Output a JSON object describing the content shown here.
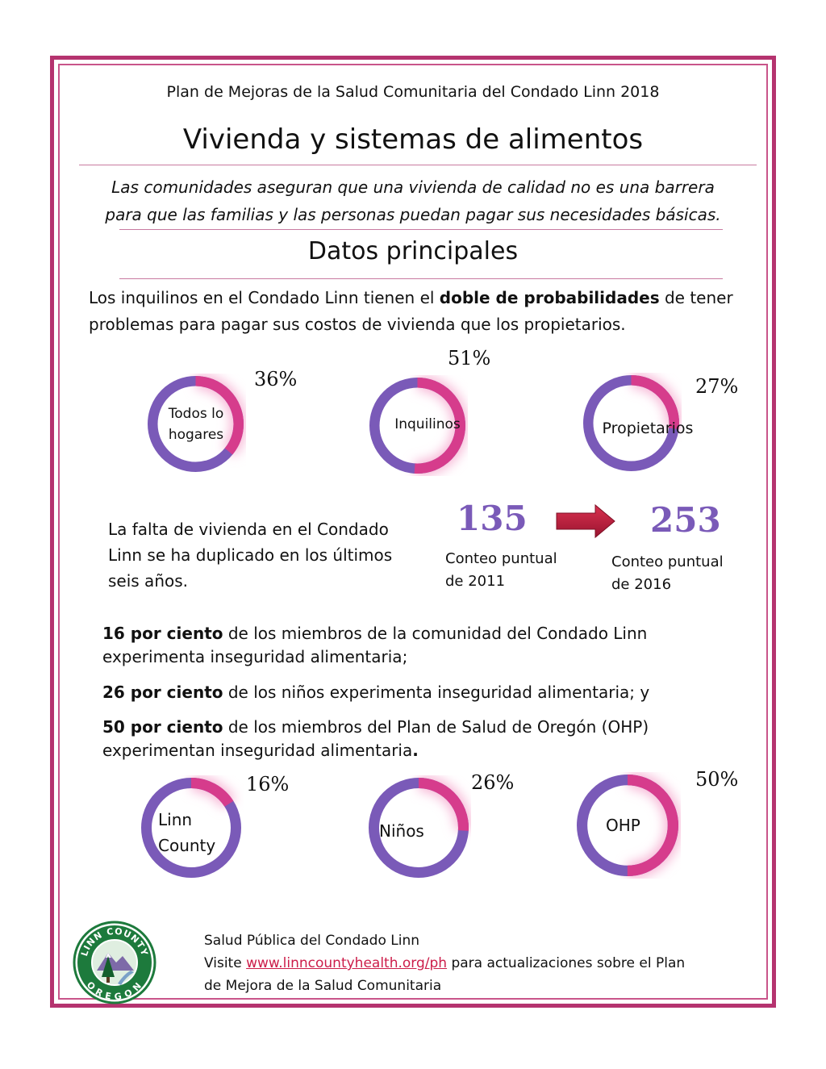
{
  "header": "Plan de Mejoras de la Salud Comunitaria del Condado Linn 2018",
  "title": "Vivienda y sistemas de alimentos",
  "subtitle_line1": "Las comunidades aseguran que una vivienda de calidad no es una barrera",
  "subtitle_line2": "para que las familias y las personas puedan pagar sus necesidades básicas.",
  "section_title": "Datos principales",
  "housing_text": {
    "pre": "Los inquilinos en el Condado Linn tienen el ",
    "bold": "doble de probabilidades",
    "post": " de tener problemas para pagar sus costos de vivienda que los propietarios."
  },
  "housing_donuts": [
    {
      "label1": "Todos lo",
      "label2": "hogares",
      "percent": 36,
      "percent_text": "36%"
    },
    {
      "label1": "Inquilinos",
      "label2": "",
      "percent": 51,
      "percent_text": "51%"
    },
    {
      "label1": "Propietarios",
      "label2": "",
      "percent": 27,
      "percent_text": "27%"
    }
  ],
  "homeless": {
    "text": "La falta de vivienda en el Condado Linn se ha duplicado en los últimos seis años.",
    "count_2011": "135",
    "label_2011_line1": "Conteo puntual",
    "label_2011_line2": "de 2011",
    "count_2016": "253",
    "label_2016_line1": "Conteo puntual",
    "label_2016_line2": "de 2016"
  },
  "food": [
    {
      "bold": "16 por ciento",
      "rest": " de los miembros de la comunidad del Condado Linn experimenta inseguridad alimentaria;"
    },
    {
      "bold": "26 por ciento",
      "rest": " de los niños experimenta inseguridad alimentaria; y"
    },
    {
      "bold": "50 por ciento",
      "rest": " de los miembros del Plan de Salud de Oregón (OHP) experimentan inseguridad alimentaria",
      "end_bold": "."
    }
  ],
  "food_donuts": [
    {
      "label1": "Linn",
      "label2": "County",
      "percent": 16,
      "percent_text": "16%"
    },
    {
      "label1": "Niños",
      "label2": "",
      "percent": 26,
      "percent_text": "26%"
    },
    {
      "label1": "OHP",
      "label2": "",
      "percent": 50,
      "percent_text": "50%"
    }
  ],
  "logo": {
    "text_top": "LINN COUNTY",
    "text_bottom": "OREGON"
  },
  "footer": {
    "org": "Salud Pública del Condado Linn",
    "visit": "Visite ",
    "url": "www.linncountyhealth.org/ph",
    "rest1": " para actualizaciones sobre el Plan",
    "rest2": "de Mejora de la Salud Comunitaria"
  },
  "colors": {
    "frame": "#b5336f",
    "donut_base": "#7a5ab8",
    "donut_fill": "#d63c8c",
    "glow": "#f7b6d6",
    "number": "#7a5ab8",
    "arrow": "#c41e3a",
    "link": "#cc1d4a"
  }
}
